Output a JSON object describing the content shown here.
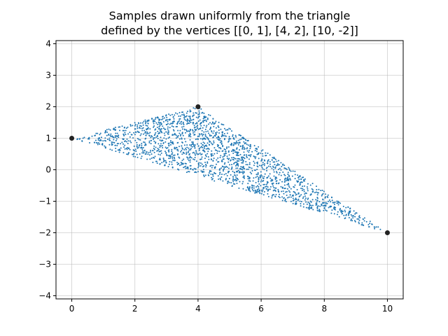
{
  "chart_data": {
    "type": "scatter",
    "title_lines": [
      "Samples drawn uniformly from the triangle",
      "defined by the vertices [[0, 1], [4, 2], [10, -2]]"
    ],
    "xlabel": "",
    "ylabel": "",
    "xlim": [
      -0.5,
      10.5
    ],
    "ylim": [
      -4.1,
      4.1
    ],
    "x_ticks": [
      0,
      2,
      4,
      6,
      8,
      10
    ],
    "x_tick_labels": [
      "0",
      "2",
      "4",
      "6",
      "8",
      "10"
    ],
    "y_ticks": [
      -4,
      -3,
      -2,
      -1,
      0,
      1,
      2,
      3,
      4
    ],
    "y_tick_labels": [
      "−4",
      "−3",
      "−2",
      "−1",
      "0",
      "1",
      "2",
      "3",
      "4"
    ],
    "grid": true,
    "series": [
      {
        "kind": "uniform-samples",
        "color": "#1f77b4",
        "count": 2000,
        "region_vertices": [
          [
            0,
            1
          ],
          [
            4,
            2
          ],
          [
            10,
            -2
          ]
        ]
      },
      {
        "kind": "vertices",
        "color": "#222222",
        "points": [
          [
            0,
            1
          ],
          [
            4,
            2
          ],
          [
            10,
            -2
          ]
        ]
      }
    ]
  }
}
